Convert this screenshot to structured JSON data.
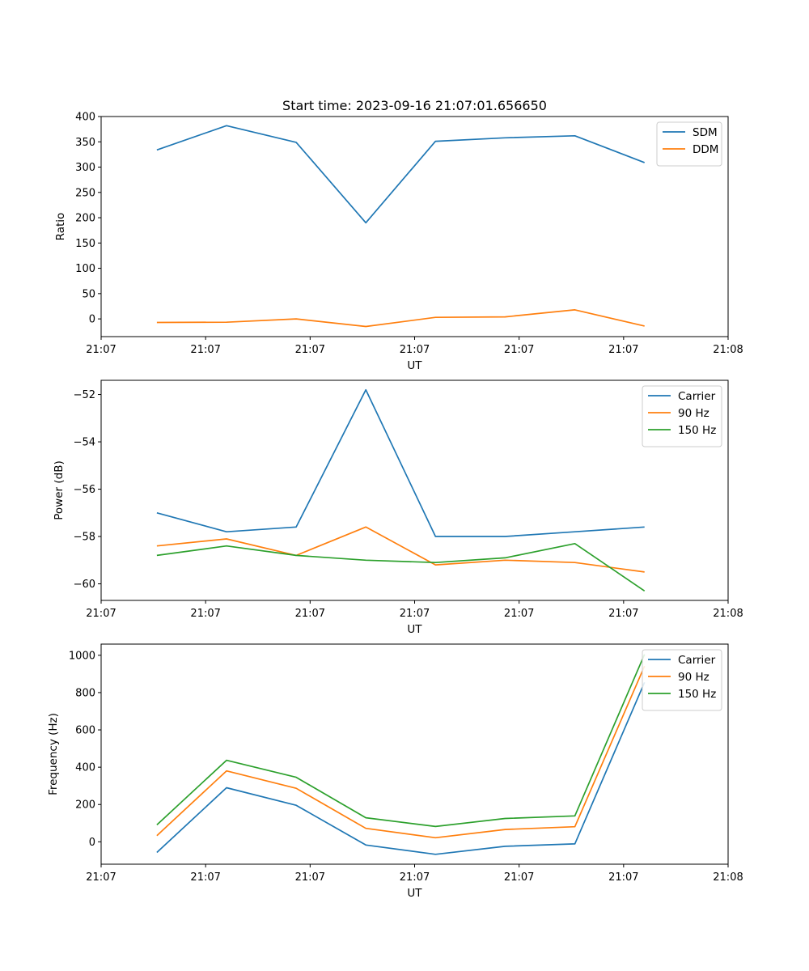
{
  "chart_data": [
    {
      "type": "line",
      "title": "Start time: 2023-09-16 21:07:01.656650",
      "xlabel": "UT",
      "ylabel": "Ratio",
      "x": [
        1,
        2,
        3,
        4,
        5,
        6,
        7,
        8
      ],
      "xlim": [
        0.2,
        9.2
      ],
      "xticks": [
        0.2,
        1.7,
        3.2,
        4.7,
        6.2,
        7.7,
        9.2
      ],
      "xtick_labels": [
        "21:07",
        "21:07",
        "21:07",
        "21:07",
        "21:07",
        "21:07",
        "21:08"
      ],
      "ylim": [
        -35,
        400
      ],
      "yticks": [
        0,
        50,
        100,
        150,
        200,
        250,
        300,
        350,
        400
      ],
      "ytick_labels": [
        "0",
        "50",
        "100",
        "150",
        "200",
        "250",
        "300",
        "350",
        "400"
      ],
      "legend": "top-right",
      "series": [
        {
          "name": "SDM",
          "color": "#1f77b4",
          "values": [
            334,
            382,
            349,
            190,
            351,
            358,
            362,
            309
          ]
        },
        {
          "name": "DDM",
          "color": "#ff7f0e",
          "values": [
            -7,
            -6.5,
            0,
            -15,
            3,
            4,
            18,
            -14
          ]
        }
      ]
    },
    {
      "type": "line",
      "title": "",
      "xlabel": "UT",
      "ylabel": "Power (dB)",
      "x": [
        1,
        2,
        3,
        4,
        5,
        6,
        7,
        8
      ],
      "xlim": [
        0.2,
        9.2
      ],
      "xticks": [
        0.2,
        1.7,
        3.2,
        4.7,
        6.2,
        7.7,
        9.2
      ],
      "xtick_labels": [
        "21:07",
        "21:07",
        "21:07",
        "21:07",
        "21:07",
        "21:07",
        "21:08"
      ],
      "ylim": [
        -60.7,
        -51.4
      ],
      "yticks": [
        -60,
        -58,
        -56,
        -54,
        -52
      ],
      "ytick_labels": [
        "−60",
        "−58",
        "−56",
        "−54",
        "−52"
      ],
      "legend": "top-right",
      "series": [
        {
          "name": "Carrier",
          "color": "#1f77b4",
          "values": [
            -57.0,
            -57.8,
            -57.6,
            -51.8,
            -58.0,
            -58.0,
            -57.8,
            -57.6
          ]
        },
        {
          "name": "90 Hz",
          "color": "#ff7f0e",
          "values": [
            -58.4,
            -58.1,
            -58.8,
            -57.6,
            -59.2,
            -59.0,
            -59.1,
            -59.5
          ]
        },
        {
          "name": "150 Hz",
          "color": "#2ca02c",
          "values": [
            -58.8,
            -58.4,
            -58.8,
            -59.0,
            -59.1,
            -58.9,
            -58.3,
            -60.3
          ]
        }
      ]
    },
    {
      "type": "line",
      "title": "",
      "xlabel": "UT",
      "ylabel": "Frequency (Hz)",
      "x": [
        1,
        2,
        3,
        4,
        5,
        6,
        7,
        8
      ],
      "xlim": [
        0.2,
        9.2
      ],
      "xticks": [
        0.2,
        1.7,
        3.2,
        4.7,
        6.2,
        7.7,
        9.2
      ],
      "xtick_labels": [
        "21:07",
        "21:07",
        "21:07",
        "21:07",
        "21:07",
        "21:07",
        "21:08"
      ],
      "ylim": [
        -120,
        1060
      ],
      "yticks": [
        0,
        200,
        400,
        600,
        800,
        1000
      ],
      "ytick_labels": [
        "0",
        "200",
        "400",
        "600",
        "800",
        "1000"
      ],
      "legend": "top-right",
      "series": [
        {
          "name": "Carrier",
          "color": "#1f77b4",
          "values": [
            -57,
            290,
            196,
            -17,
            -67,
            -24,
            -11,
            855
          ]
        },
        {
          "name": "90 Hz",
          "color": "#ff7f0e",
          "values": [
            33,
            380,
            287,
            72,
            22,
            66,
            81,
            942
          ]
        },
        {
          "name": "150 Hz",
          "color": "#2ca02c",
          "values": [
            91,
            437,
            346,
            129,
            82,
            125,
            139,
            1005
          ]
        }
      ]
    }
  ]
}
